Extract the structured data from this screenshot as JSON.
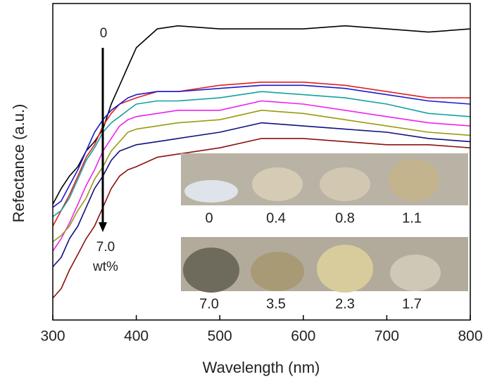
{
  "chart_data": {
    "type": "line",
    "x_label": "Wavelength (nm)",
    "y_label": "Refectance (a.u.)",
    "x": [
      300,
      310,
      320,
      330,
      340,
      350,
      360,
      370,
      380,
      390,
      400,
      425,
      450,
      500,
      550,
      600,
      650,
      700,
      750,
      800
    ],
    "xlim": [
      300,
      800
    ],
    "xticks": [
      300,
      400,
      500,
      600,
      700,
      800
    ],
    "ylim": [
      0,
      100
    ],
    "series": [
      {
        "color": "#000000",
        "values": [
          37,
          42,
          46,
          49,
          54,
          57,
          61,
          69,
          75,
          81,
          87,
          93,
          94,
          93,
          93,
          93,
          94,
          93,
          92,
          93
        ]
      },
      {
        "color": "#e02020",
        "values": [
          30,
          35,
          40,
          46,
          52,
          56,
          62,
          66,
          69,
          70,
          71,
          73,
          73,
          75,
          76,
          76,
          75,
          73,
          71,
          71
        ]
      },
      {
        "color": "#1a1acc",
        "values": [
          36,
          38,
          43,
          48,
          54,
          60,
          64,
          67,
          69,
          71,
          72,
          73,
          73,
          74,
          75,
          75,
          74,
          72,
          70,
          69
        ]
      },
      {
        "color": "#14a0a0",
        "values": [
          33,
          35,
          39,
          45,
          51,
          55,
          60,
          63,
          65,
          67,
          69,
          70,
          70,
          71,
          73,
          72,
          71,
          69,
          66,
          65
        ]
      },
      {
        "color": "#ee22ee",
        "values": [
          22,
          26,
          31,
          37,
          43,
          48,
          54,
          58,
          62,
          64,
          65,
          66,
          67,
          67,
          70,
          69,
          67,
          65,
          63,
          62
        ]
      },
      {
        "color": "#9a9a10",
        "values": [
          25,
          27,
          30,
          35,
          39,
          45,
          49,
          54,
          57,
          60,
          61,
          62,
          63,
          64,
          67,
          66,
          64,
          62,
          60,
          59
        ]
      },
      {
        "color": "#101080",
        "values": [
          17,
          20,
          26,
          30,
          36,
          42,
          46,
          51,
          54,
          55,
          56,
          57,
          58,
          60,
          63,
          62,
          61,
          60,
          58,
          57
        ]
      },
      {
        "color": "#8b1010",
        "values": [
          7,
          10,
          16,
          21,
          26,
          30,
          36,
          42,
          46,
          48,
          49,
          52,
          53,
          55,
          58,
          58,
          57,
          56,
          56,
          55
        ]
      }
    ],
    "annotations": {
      "arrow_start": "0",
      "arrow_end": [
        "7.0",
        "wt%"
      ]
    },
    "inset_labels": {
      "top": [
        "0",
        "0.4",
        "0.8",
        "1.1"
      ],
      "bottom": [
        "7.0",
        "3.5",
        "2.3",
        "1.7"
      ]
    }
  }
}
